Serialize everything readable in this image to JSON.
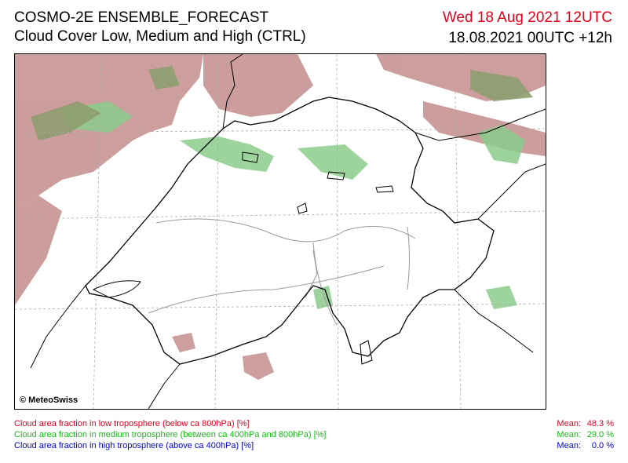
{
  "header": {
    "title": "COSMO-2E ENSEMBLE_FORECAST",
    "subtitle": "Cloud Cover Low, Medium and High (CTRL)",
    "valid_time": "Wed 18 Aug 2021 12UTC",
    "run_time": "18.08.2021 00UTC +12h"
  },
  "map": {
    "copyright": "© MeteoSwiss",
    "colors": {
      "low": "#c48c8c",
      "medium": "#7fc27f",
      "high_overlap": "#8c9a70",
      "border": "#000000",
      "gray_lines": "#999999"
    }
  },
  "legend": [
    {
      "label": "Cloud area fraction in low troposphere (below ca 800hPa) [%]",
      "mean_label": "Mean:",
      "mean_value": "48.3 %",
      "color": "#e0001a"
    },
    {
      "label": "Cloud area fraction in medium troposphere (between ca 400hPa and 800hPa) [%]",
      "mean_label": "Mean:",
      "mean_value": "29.0 %",
      "color": "#10c010"
    },
    {
      "label": "Cloud area fraction in high troposphere (above ca 400hPa) [%]",
      "mean_label": "Mean:",
      "mean_value": "0.0 %",
      "color": "#0000e0"
    }
  ]
}
